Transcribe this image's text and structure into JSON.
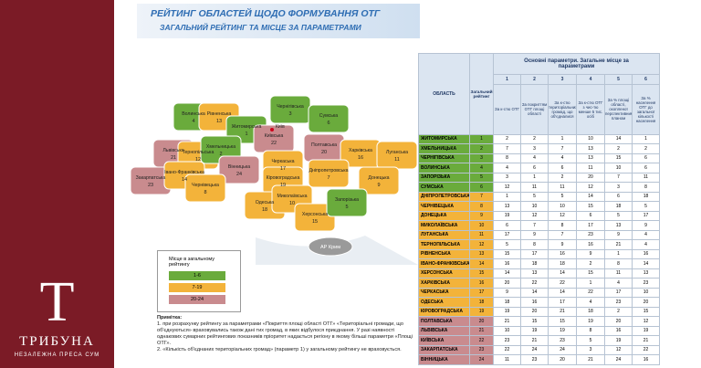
{
  "brand": {
    "logo": "T",
    "name": "ТРИБУНА",
    "tagline": "НЕЗАЛЕЖНА ПРЕСА СУМ"
  },
  "header": {
    "title": "РЕЙТИНГ ОБЛАСТЕЙ ЩОДО ФОРМУВАННЯ ОТГ",
    "subtitle": "ЗАГАЛЬНИЙ РЕЙТИНГ ТА МІСЦЕ ЗА ПАРАМЕТРАМИ"
  },
  "map": {
    "capital": "Київ",
    "crimea": "АР Крим",
    "regions": [
      {
        "name": "Волинська",
        "rating": 4
      },
      {
        "name": "Рівненська",
        "rating": 13
      },
      {
        "name": "Житомирська",
        "rating": 1
      },
      {
        "name": "Чернігівська",
        "rating": 3
      },
      {
        "name": "Сумська",
        "rating": 6
      },
      {
        "name": "Київська",
        "rating": 22
      },
      {
        "name": "Полтавська",
        "rating": 20
      },
      {
        "name": "Харківська",
        "rating": 16
      },
      {
        "name": "Луганська",
        "rating": 11
      },
      {
        "name": "Львівська",
        "rating": 21
      },
      {
        "name": "Тернопільська",
        "rating": 12
      },
      {
        "name": "Хмельницька",
        "rating": 2
      },
      {
        "name": "Вінницька",
        "rating": 24
      },
      {
        "name": "Черкаська",
        "rating": 17
      },
      {
        "name": "Кіровоградська",
        "rating": 19
      },
      {
        "name": "Дніпропетровська",
        "rating": 7
      },
      {
        "name": "Донецька",
        "rating": 9
      },
      {
        "name": "Закарпатська",
        "rating": 23
      },
      {
        "name": "Івано-Франківська",
        "rating": 14
      },
      {
        "name": "Чернівецька",
        "rating": 8
      },
      {
        "name": "Одеська",
        "rating": 18
      },
      {
        "name": "Миколаївська",
        "rating": 10
      },
      {
        "name": "Херсонська",
        "rating": 15
      },
      {
        "name": "Запорізька",
        "rating": 5
      }
    ]
  },
  "legend": {
    "title": "Місце в загальному рейтингу",
    "items": [
      {
        "label": "1-6",
        "color": "#6aab3c"
      },
      {
        "label": "7-19",
        "color": "#f3b33a"
      },
      {
        "label": "20-24",
        "color": "#c98b8e"
      }
    ]
  },
  "notes": {
    "title": "Примітка:",
    "items": [
      "1. при розрахунку рейтингу за параметрами «Покриття площі області ОТГ» «Територіальні громади, що об'єднуються» враховувались також дані тих громад, в яких відбулося приєднання. У разі наявності однакових сумарних рейтингових показників пріоритет надається регіону в якому більші параметри «Площі ОТГ».",
      "2. «Кількість об'єднаних територіальних громад» (параметр 1) у загальному рейтингу не враховується."
    ]
  },
  "table": {
    "header": {
      "region": "ОБЛАСТЬ",
      "rating": "Загальний рейтинг",
      "params_title": "Основні параметри. Загальне місце за параметрами"
    },
    "columns": [
      {
        "number": 1,
        "label": "За к-стю ОТГ"
      },
      {
        "number": 2,
        "label": "За покриттям ОТГ площі області"
      },
      {
        "number": 3,
        "label": "За к-стю територіальних громад, що об'єдналися"
      },
      {
        "number": 4,
        "label": "За к-стю ОТГ з чис-тю менше 5 тис. осіб"
      },
      {
        "number": 5,
        "label": "За % площі області, охопленої перспективним планом"
      },
      {
        "number": 6,
        "label": "За % населення ОТГ до загальної кількості населення"
      }
    ],
    "rows": [
      [
        "ЖИТОМИРСЬКА",
        1,
        2,
        2,
        1,
        10,
        14,
        1
      ],
      [
        "ХМЕЛЬНИЦЬКА",
        2,
        7,
        3,
        7,
        13,
        2,
        2
      ],
      [
        "ЧЕРНІГІВСЬКА",
        3,
        8,
        4,
        4,
        13,
        15,
        6
      ],
      [
        "ВОЛИНСЬКА",
        4,
        4,
        6,
        6,
        11,
        10,
        6
      ],
      [
        "ЗАПОРІЗЬКА",
        5,
        3,
        1,
        2,
        20,
        7,
        11
      ],
      [
        "СУМСЬКА",
        6,
        12,
        11,
        11,
        12,
        3,
        8
      ],
      [
        "ДНІПРОПЕТРОВСЬКА",
        7,
        1,
        5,
        5,
        14,
        6,
        18
      ],
      [
        "ЧЕРНІВЕЦЬКА",
        8,
        13,
        10,
        10,
        15,
        18,
        5
      ],
      [
        "ДОНЕЦЬКА",
        9,
        19,
        12,
        12,
        6,
        5,
        17
      ],
      [
        "МИКОЛАЇВСЬКА",
        10,
        6,
        7,
        8,
        17,
        13,
        9
      ],
      [
        "ЛУГАНСЬКА",
        11,
        17,
        9,
        7,
        23,
        9,
        4
      ],
      [
        "ТЕРНОПІЛЬСЬКА",
        12,
        5,
        8,
        9,
        16,
        21,
        4
      ],
      [
        "РІВНЕНСЬКА",
        13,
        15,
        17,
        16,
        9,
        1,
        16
      ],
      [
        "ІВАНО-ФРАНКІВСЬКА",
        14,
        16,
        18,
        18,
        2,
        8,
        14
      ],
      [
        "ХЕРСОНСЬКА",
        15,
        14,
        13,
        14,
        15,
        11,
        13
      ],
      [
        "ХАРКІВСЬКА",
        16,
        20,
        22,
        22,
        1,
        4,
        23
      ],
      [
        "ЧЕРКАСЬКА",
        17,
        9,
        14,
        14,
        22,
        17,
        10
      ],
      [
        "ОДЕСЬКА",
        18,
        18,
        16,
        17,
        4,
        23,
        20
      ],
      [
        "КІРОВОГРАДСЬКА",
        19,
        19,
        20,
        21,
        18,
        2,
        15
      ],
      [
        "ПОЛТАВСЬКА",
        20,
        21,
        15,
        15,
        19,
        20,
        12
      ],
      [
        "ЛЬВІВСЬКА",
        21,
        10,
        19,
        19,
        8,
        16,
        19
      ],
      [
        "КИЇВСЬКА",
        22,
        23,
        21,
        23,
        5,
        19,
        21
      ],
      [
        "ЗАКАРПАТСЬКА",
        23,
        22,
        24,
        24,
        3,
        12,
        22
      ],
      [
        "ВІННИЦЬКА",
        24,
        11,
        23,
        20,
        21,
        24,
        16
      ]
    ]
  }
}
